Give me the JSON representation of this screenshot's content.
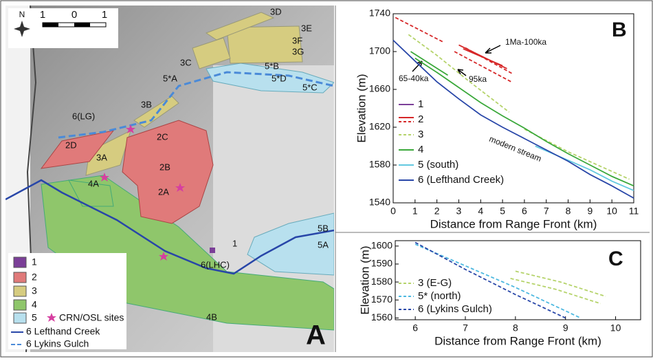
{
  "map": {
    "panel_label": "A",
    "north": "N",
    "scale_labels": [
      "1",
      "0",
      "1"
    ],
    "unit_labels": [
      "3D",
      "3E",
      "3F",
      "3G",
      "3C",
      "5*A",
      "5*B",
      "5*D",
      "5*C",
      "6(LG)",
      "3B",
      "2D",
      "3A",
      "2C",
      "2B",
      "4A",
      "2A",
      "5B",
      "5A",
      "1",
      "6(LHC)",
      "4B"
    ],
    "legend": [
      "1",
      "2",
      "3",
      "4",
      "5",
      "CRN/OSL sites",
      "6  Lefthand Creek",
      "6  Lykins Gulch"
    ]
  },
  "chart_data": [
    {
      "type": "line",
      "panel_label": "B",
      "x_label": "Distance from Range Front (km)",
      "y_label": "Elevation (m)",
      "xlim": [
        0,
        11
      ],
      "ylim": [
        1540,
        1740
      ],
      "xticks": [
        0,
        1,
        2,
        3,
        4,
        5,
        6,
        7,
        8,
        9,
        10,
        11
      ],
      "yticks": [
        1540,
        1580,
        1620,
        1660,
        1700,
        1740
      ],
      "annotations": [
        "1Ma-100ka",
        "65-40ka",
        "95ka",
        "modern stream"
      ],
      "series": [
        {
          "name": "1",
          "color": "#7b3f98",
          "lines": []
        },
        {
          "name": "2",
          "color": "#d62728",
          "lines": [
            {
              "dashed": false,
              "x": [
                3.0,
                5.2
              ],
              "values": [
                1707,
                1682
              ]
            },
            {
              "dashed": false,
              "x": [
                3.2,
                5.0
              ],
              "values": [
                1703,
                1685
              ]
            },
            {
              "dashed": true,
              "x": [
                0.1,
                2.3
              ],
              "values": [
                1736,
                1710
              ]
            },
            {
              "dashed": true,
              "x": [
                2.8,
                5.4
              ],
              "values": [
                1700,
                1668
              ]
            },
            {
              "dashed": true,
              "x": [
                3.3,
                5.5
              ],
              "values": [
                1704,
                1676
              ]
            }
          ]
        },
        {
          "name": "3",
          "color": "#b5d36a",
          "lines": [
            {
              "dashed": true,
              "x": [
                0.7,
                2,
                3.5,
                5.3
              ],
              "values": [
                1718,
                1696,
                1668,
                1636
              ]
            },
            {
              "dashed": true,
              "x": [
                6,
                8,
                10.8
              ],
              "values": [
                1618,
                1594,
                1565
              ]
            }
          ]
        },
        {
          "name": "4",
          "color": "#3aa83a",
          "lines": [
            {
              "dashed": false,
              "x": [
                0.8,
                2.5
              ],
              "values": [
                1700,
                1675
              ]
            },
            {
              "dashed": false,
              "x": [
                1,
                2,
                3,
                4,
                5,
                6,
                7,
                8,
                9,
                10,
                11
              ],
              "values": [
                1693,
                1678,
                1662,
                1646,
                1632,
                1619,
                1605,
                1592,
                1580,
                1568,
                1558
              ]
            }
          ]
        },
        {
          "name": "5 (south)",
          "color": "#62c8e0",
          "lines": [
            {
              "dashed": false,
              "x": [
                6.5,
                8,
                9,
                10,
                11
              ],
              "values": [
                1600,
                1585,
                1575,
                1563,
                1553
              ]
            }
          ]
        },
        {
          "name": "6 (Lefthand Creek)",
          "color": "#2846a8",
          "lines": [
            {
              "dashed": false,
              "x": [
                0,
                1,
                2,
                3,
                4,
                5,
                6,
                7,
                8,
                9,
                10,
                11
              ],
              "values": [
                1712,
                1690,
                1668,
                1650,
                1633,
                1620,
                1608,
                1596,
                1584,
                1570,
                1558,
                1545
              ]
            }
          ]
        }
      ]
    },
    {
      "type": "line",
      "panel_label": "C",
      "x_label": "Distance from Range Front (km)",
      "y_label": "Elevation (m)",
      "xlim": [
        5.6,
        10.5
      ],
      "ylim": [
        1559,
        1603
      ],
      "xticks": [
        6,
        7,
        8,
        9,
        10
      ],
      "yticks": [
        1560,
        1570,
        1580,
        1590,
        1600
      ],
      "series": [
        {
          "name": "3 (E-G)",
          "color": "#b5d36a",
          "lines": [
            {
              "dashed": true,
              "x": [
                8,
                8.9,
                9.8
              ],
              "values": [
                1586,
                1580,
                1572
              ]
            },
            {
              "dashed": true,
              "x": [
                7.9,
                8.8,
                9.7
              ],
              "values": [
                1582,
                1576,
                1568
              ]
            }
          ]
        },
        {
          "name": "5* (north)",
          "color": "#4cb8e0",
          "lines": [
            {
              "dashed": true,
              "x": [
                6,
                7,
                8,
                9.3
              ],
              "values": [
                1601,
                1589,
                1577,
                1560
              ]
            }
          ]
        },
        {
          "name": "6 (Lykins Gulch)",
          "color": "#2846a8",
          "lines": [
            {
              "dashed": true,
              "x": [
                6,
                7,
                8,
                9
              ],
              "values": [
                1602,
                1587,
                1573,
                1560
              ]
            }
          ]
        }
      ]
    }
  ]
}
